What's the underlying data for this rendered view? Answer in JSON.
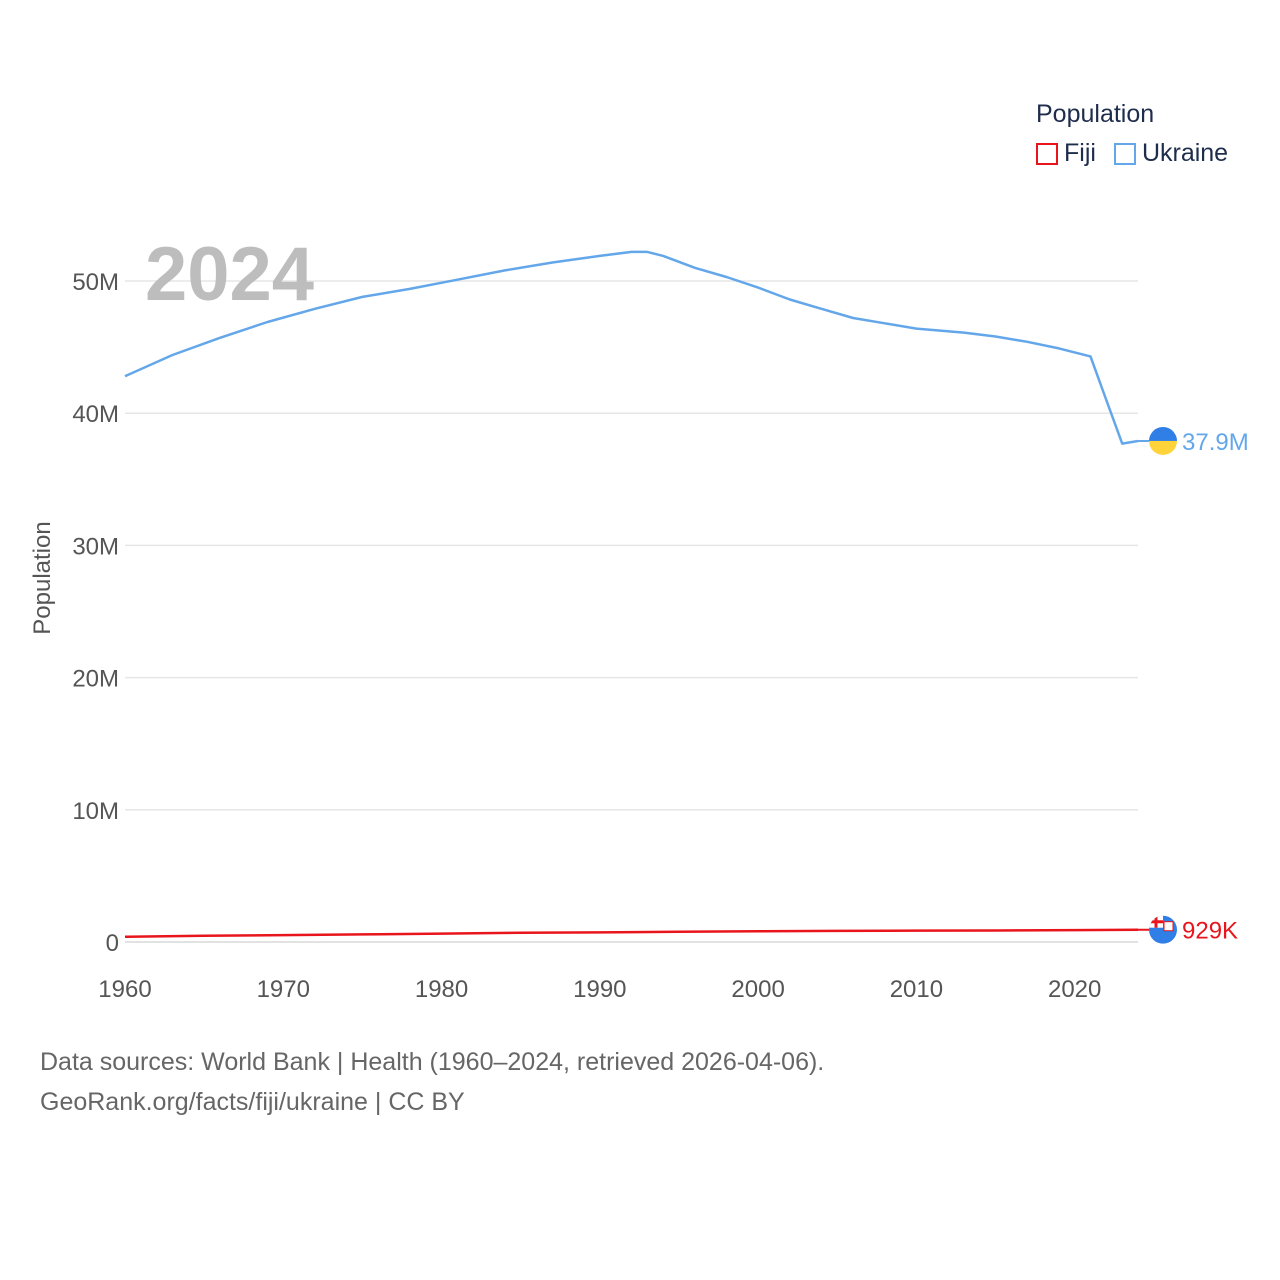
{
  "chart_data": {
    "type": "line",
    "title": "",
    "year_label": "2024",
    "xlabel": "",
    "ylabel": "Population",
    "xlim": [
      1960,
      2024
    ],
    "ylim": [
      0,
      55000000
    ],
    "x_ticks": [
      1960,
      1970,
      1980,
      1990,
      2000,
      2010,
      2020
    ],
    "x_tick_labels": [
      "1960",
      "1970",
      "1980",
      "1990",
      "2000",
      "2010",
      "2020"
    ],
    "y_ticks": [
      0,
      10000000,
      20000000,
      30000000,
      40000000,
      50000000
    ],
    "y_tick_labels": [
      "0",
      "10M",
      "20M",
      "30M",
      "40M",
      "50M"
    ],
    "grid": true,
    "legend": {
      "title": "Population",
      "position": "top-right"
    },
    "series": [
      {
        "name": "Fiji",
        "color": "#e8161c",
        "end_label": "929K",
        "points": [
          [
            1960,
            394000
          ],
          [
            1965,
            470000
          ],
          [
            1970,
            520000
          ],
          [
            1975,
            577000
          ],
          [
            1980,
            635000
          ],
          [
            1985,
            700000
          ],
          [
            1990,
            729000
          ],
          [
            1995,
            770000
          ],
          [
            2000,
            812000
          ],
          [
            2005,
            837000
          ],
          [
            2010,
            860000
          ],
          [
            2015,
            869000
          ],
          [
            2020,
            900000
          ],
          [
            2024,
            929000
          ]
        ]
      },
      {
        "name": "Ukraine",
        "color": "#63a7ea",
        "end_label": "37.9M",
        "points": [
          [
            1960,
            42800000
          ],
          [
            1963,
            44400000
          ],
          [
            1966,
            45700000
          ],
          [
            1969,
            46900000
          ],
          [
            1972,
            47900000
          ],
          [
            1975,
            48800000
          ],
          [
            1978,
            49400000
          ],
          [
            1981,
            50100000
          ],
          [
            1984,
            50800000
          ],
          [
            1987,
            51400000
          ],
          [
            1990,
            51900000
          ],
          [
            1992,
            52200000
          ],
          [
            1993,
            52200000
          ],
          [
            1994,
            51900000
          ],
          [
            1996,
            51000000
          ],
          [
            1998,
            50300000
          ],
          [
            2000,
            49500000
          ],
          [
            2002,
            48600000
          ],
          [
            2004,
            47900000
          ],
          [
            2006,
            47200000
          ],
          [
            2008,
            46800000
          ],
          [
            2010,
            46400000
          ],
          [
            2013,
            46100000
          ],
          [
            2015,
            45800000
          ],
          [
            2017,
            45400000
          ],
          [
            2019,
            44900000
          ],
          [
            2021,
            44300000
          ],
          [
            2022,
            41000000
          ],
          [
            2023,
            37700000
          ],
          [
            2024,
            37900000
          ]
        ]
      }
    ]
  },
  "footer": {
    "line1": "Data sources: World Bank | Health (1960–2024, retrieved 2026-04-06).",
    "line2": "GeoRank.org/facts/fiji/ukraine | CC BY"
  }
}
